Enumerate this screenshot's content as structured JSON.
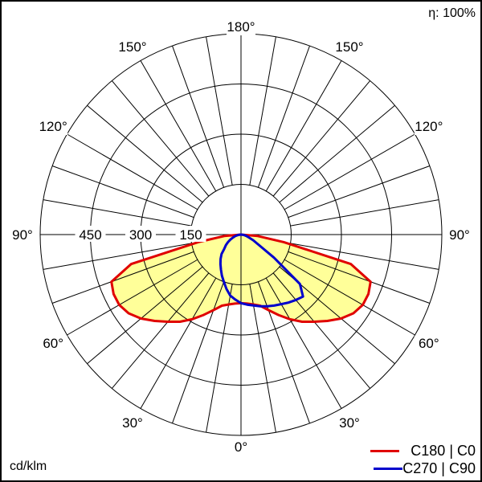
{
  "chart_data": {
    "type": "polar",
    "efficiency_label": "η: 100%",
    "unit_label": "cd/klm",
    "radial_ticks": [
      150,
      300,
      450
    ],
    "radial_tick_labels": [
      "150",
      "300",
      "450"
    ],
    "radial_max": 600,
    "angle_labels": [
      "0°",
      "30°",
      "60°",
      "90°",
      "120°",
      "150°",
      "180°"
    ],
    "angle_label_values": [
      0,
      30,
      60,
      90,
      120,
      150,
      180
    ],
    "gamma": [
      0,
      5,
      10,
      15,
      20,
      25,
      30,
      35,
      40,
      45,
      50,
      55,
      60,
      65,
      70,
      75,
      80,
      85,
      90
    ],
    "series": [
      {
        "name": "C180 | C0",
        "color": "#e00000",
        "fill": "#ffff99",
        "left_plane": "C180",
        "right_plane": "C0",
        "left_values": [
          205,
          207,
          212,
          220,
          240,
          265,
          292,
          318,
          340,
          365,
          390,
          410,
          420,
          420,
          412,
          340,
          130,
          50,
          0
        ],
        "right_values": [
          205,
          207,
          212,
          220,
          240,
          265,
          292,
          318,
          340,
          365,
          390,
          410,
          420,
          420,
          412,
          340,
          130,
          50,
          0
        ]
      },
      {
        "name": "C270 | C90",
        "color": "#0000cc",
        "left_plane": "C270",
        "right_plane": "C90",
        "left_values": [
          205,
          195,
          185,
          168,
          150,
          135,
          120,
          107,
          95,
          82,
          65,
          55,
          45,
          35,
          25,
          18,
          10,
          5,
          0
        ],
        "right_values": [
          205,
          210,
          215,
          222,
          228,
          234,
          240,
          248,
          255,
          262,
          230,
          120,
          60,
          40,
          25,
          17,
          10,
          5,
          0
        ]
      }
    ]
  }
}
